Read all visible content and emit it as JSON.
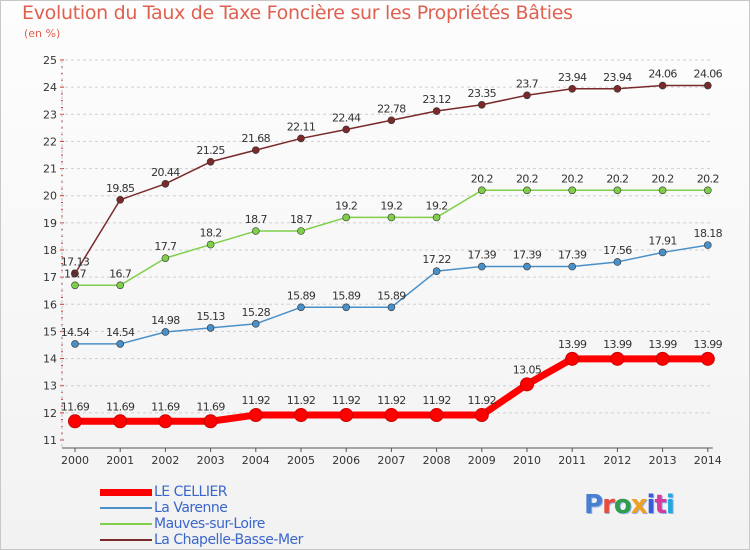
{
  "title": "Evolution du Taux de Taxe Foncière sur les Propriétés Bâties",
  "unit_label": "(en %)",
  "brand": "Proxiti",
  "chart_data": {
    "type": "line",
    "title": "Evolution du Taux de Taxe Foncière sur les Propriétés Bâties",
    "ylabel": "(en %)",
    "xlabel": "",
    "x": [
      "2000",
      "2001",
      "2002",
      "2003",
      "2004",
      "2005",
      "2006",
      "2007",
      "2008",
      "2009",
      "2010",
      "2011",
      "2012",
      "2013",
      "2014"
    ],
    "ylim": [
      11,
      25
    ],
    "yticks": [
      "11",
      "12",
      "13",
      "14",
      "15",
      "16",
      "17",
      "18",
      "19",
      "20",
      "21",
      "22",
      "23",
      "24",
      "25"
    ],
    "grid": "horizontal dashed",
    "legend_position": "bottom-left",
    "series": [
      {
        "name": "LE CELLIER",
        "color": "#ff0000",
        "values": [
          11.69,
          11.69,
          11.69,
          11.69,
          11.92,
          11.92,
          11.92,
          11.92,
          11.92,
          11.92,
          13.05,
          13.99,
          13.99,
          13.99,
          13.99
        ],
        "labels": [
          "11.69",
          "11.69",
          "11.69",
          "11.69",
          "11.92",
          "11.92",
          "11.92",
          "11.92",
          "11.92",
          "11.92",
          "13.05",
          "13.99",
          "13.99",
          "13.99",
          "13.99"
        ]
      },
      {
        "name": "La Varenne",
        "color": "#4a90c8",
        "values": [
          14.54,
          14.54,
          14.98,
          15.13,
          15.28,
          15.89,
          15.89,
          15.89,
          17.22,
          17.39,
          17.39,
          17.39,
          17.56,
          17.91,
          18.18
        ],
        "labels": [
          "14.54",
          "14.54",
          "14.98",
          "15.13",
          "15.28",
          "15.89",
          "15.89",
          "15.89",
          "17.22",
          "17.39",
          "17.39",
          "17.39",
          "17.56",
          "17.91",
          "18.18"
        ]
      },
      {
        "name": "Mauves-sur-Loire",
        "color": "#7fcf4a",
        "values": [
          16.7,
          16.7,
          17.7,
          18.2,
          18.7,
          18.7,
          19.2,
          19.2,
          19.2,
          20.2,
          20.2,
          20.2,
          20.2,
          20.2,
          20.2
        ],
        "labels": [
          "16.7",
          "16.7",
          "17.7",
          "18.2",
          "18.7",
          "18.7",
          "19.2",
          "19.2",
          "19.2",
          "20.2",
          "20.2",
          "20.2",
          "20.2",
          "20.2",
          "20.2"
        ]
      },
      {
        "name": "La Chapelle-Basse-Mer",
        "color": "#7a2a2a",
        "values": [
          17.13,
          19.85,
          20.44,
          21.25,
          21.68,
          22.11,
          22.44,
          22.78,
          23.12,
          23.35,
          23.7,
          23.94,
          23.94,
          24.06,
          24.06
        ],
        "labels": [
          "17.13",
          "19.85",
          "20.44",
          "21.25",
          "21.68",
          "22.11",
          "22.44",
          "22.78",
          "23.12",
          "23.35",
          "23.7",
          "23.94",
          "23.94",
          "24.06",
          "24.06"
        ]
      }
    ]
  }
}
